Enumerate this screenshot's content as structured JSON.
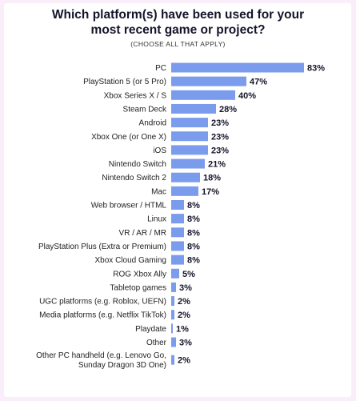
{
  "chart_data": {
    "type": "bar",
    "orientation": "horizontal",
    "title_line1": "Which platform(s) have been used for your",
    "title_line2": "most recent game or project?",
    "subtitle": "(CHOOSE ALL THAT APPLY)",
    "xlim": [
      0,
      83
    ],
    "grid": false,
    "bar_color": "#7b9cec",
    "categories": [
      [
        "PC"
      ],
      [
        "PlayStation 5 (or 5 Pro)"
      ],
      [
        "Xbox Series X / S"
      ],
      [
        "Steam Deck"
      ],
      [
        "Android"
      ],
      [
        "Xbox One (or One X)"
      ],
      [
        "iOS"
      ],
      [
        "Nintendo Switch"
      ],
      [
        "Nintendo Switch 2"
      ],
      [
        "Mac"
      ],
      [
        "Web browser / HTML"
      ],
      [
        "Linux"
      ],
      [
        "VR / AR / MR"
      ],
      [
        "PlayStation Plus (Extra or Premium)"
      ],
      [
        "Xbox Cloud Gaming"
      ],
      [
        "ROG Xbox Ally"
      ],
      [
        "Tabletop games"
      ],
      [
        "UGC platforms (e.g. Roblox, UEFN)"
      ],
      [
        "Media platforms (e.g. Netflix TikTok)"
      ],
      [
        "Playdate"
      ],
      [
        "Other"
      ],
      [
        "Other PC handheld (e.g. Lenovo Go,",
        "Sunday Dragon 3D One)"
      ]
    ],
    "values": [
      83,
      47,
      40,
      28,
      23,
      23,
      23,
      21,
      18,
      17,
      8,
      8,
      8,
      8,
      8,
      5,
      3,
      2,
      2,
      1,
      3,
      2
    ],
    "value_labels": [
      "83%",
      "47%",
      "40%",
      "28%",
      "23%",
      "23%",
      "23%",
      "21%",
      "18%",
      "17%",
      "8%",
      "8%",
      "8%",
      "8%",
      "8%",
      "5%",
      "3%",
      "2%",
      "2%",
      "1%",
      "3%",
      "2%"
    ]
  }
}
